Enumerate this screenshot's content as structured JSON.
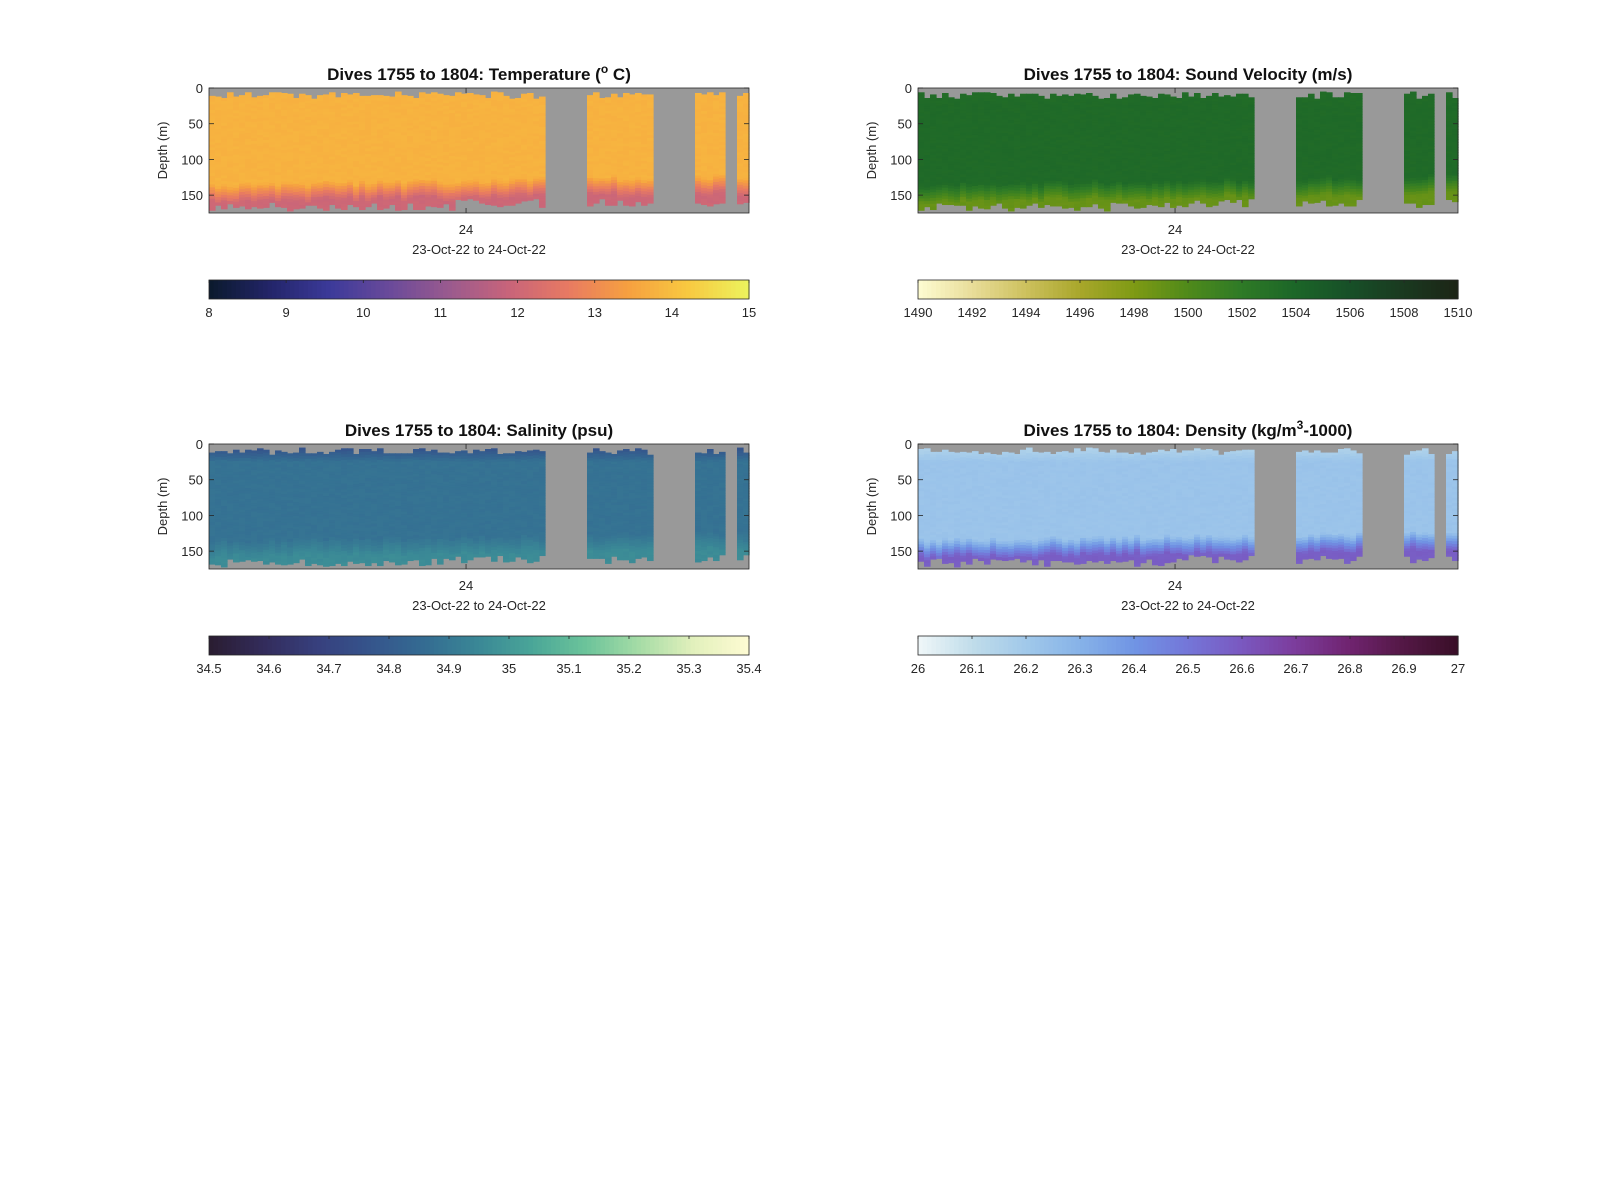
{
  "figure": {
    "background": "#ffffff",
    "missing_data_color": "#999999"
  },
  "chart_data": [
    {
      "type": "heatmap",
      "name": "temperature",
      "title": "Dives 1755 to 1804: Temperature (",
      "title_sup": "o",
      "title_suffix": " C)",
      "ylabel": "Depth (m)",
      "ylim": [
        0,
        175
      ],
      "y_reversed": true,
      "yticks": [
        "0",
        "50",
        "100",
        "150"
      ],
      "ytick_values": [
        0,
        50,
        100,
        150
      ],
      "xticks": [
        "24"
      ],
      "xlabel": "23-Oct-22 to 24-Oct-22",
      "colorbar": {
        "range": [
          8,
          15
        ],
        "ticks": [
          "8",
          "9",
          "10",
          "11",
          "12",
          "13",
          "14",
          "15"
        ],
        "tick_values": [
          8,
          9,
          10,
          11,
          12,
          13,
          14,
          15
        ],
        "colors": [
          "#0b1a2e",
          "#23256a",
          "#3c3a9a",
          "#6a4a9a",
          "#9a5a8e",
          "#c8647a",
          "#e87a62",
          "#f6a040",
          "#f8c840",
          "#ecf25c"
        ]
      },
      "profile": {
        "surface_value": 13.8,
        "mid_value": 13.8,
        "bottom_value": 12.0
      },
      "dive_gaps": [
        "gap-1",
        "gap-2",
        "gap-3"
      ]
    },
    {
      "type": "heatmap",
      "name": "sound-velocity",
      "title": "Dives 1755 to 1804: Sound Velocity (m/s)",
      "ylabel": "Depth (m)",
      "ylim": [
        0,
        175
      ],
      "y_reversed": true,
      "yticks": [
        "0",
        "50",
        "100",
        "150"
      ],
      "ytick_values": [
        0,
        50,
        100,
        150
      ],
      "xticks": [
        "24"
      ],
      "xlabel": "23-Oct-22 to 24-Oct-22",
      "colorbar": {
        "range": [
          1490,
          1510
        ],
        "ticks": [
          "1490",
          "1492",
          "1494",
          "1496",
          "1498",
          "1500",
          "1502",
          "1504",
          "1506",
          "1508",
          "1510"
        ],
        "tick_values": [
          1490,
          1492,
          1494,
          1496,
          1498,
          1500,
          1502,
          1504,
          1506,
          1508,
          1510
        ],
        "colors": [
          "#fdfbd0",
          "#e8dc98",
          "#ccc05c",
          "#a8a62a",
          "#7e9a14",
          "#4f8a1a",
          "#2e7a26",
          "#1c6628",
          "#175028",
          "#1a3a20",
          "#1c2516"
        ]
      },
      "profile": {
        "surface_value": 1503.3,
        "mid_value": 1503.6,
        "bottom_value": 1499.0
      },
      "dive_gaps": [
        "gap-1",
        "gap-2",
        "gap-3"
      ]
    },
    {
      "type": "heatmap",
      "name": "salinity",
      "title": "Dives 1755 to 1804: Salinity (psu)",
      "ylabel": "Depth (m)",
      "ylim": [
        0,
        175
      ],
      "y_reversed": true,
      "yticks": [
        "0",
        "50",
        "100",
        "150"
      ],
      "ytick_values": [
        0,
        50,
        100,
        150
      ],
      "xticks": [
        "24"
      ],
      "xlabel": "23-Oct-22 to 24-Oct-22",
      "colorbar": {
        "range": [
          34.5,
          35.4
        ],
        "ticks": [
          "34.5",
          "34.6",
          "34.7",
          "34.8",
          "34.9",
          "35",
          "35.1",
          "35.2",
          "35.3",
          "35.4"
        ],
        "tick_values": [
          34.5,
          34.6,
          34.7,
          34.8,
          34.9,
          35.0,
          35.1,
          35.2,
          35.3,
          35.4
        ],
        "colors": [
          "#2a1d32",
          "#332c5c",
          "#37407e",
          "#35558c",
          "#346c92",
          "#3a8896",
          "#4aa698",
          "#6cc49a",
          "#a6dca6",
          "#e2f0bc",
          "#fdfbd2"
        ]
      },
      "profile": {
        "surface_value": 34.72,
        "mid_value": 34.88,
        "bottom_value": 34.96
      },
      "dive_gaps": [
        "gap-1",
        "gap-2",
        "gap-3"
      ]
    },
    {
      "type": "heatmap",
      "name": "density",
      "title": "Dives 1755 to 1804: Density (kg/m",
      "title_sup": "3",
      "title_suffix": "-1000)",
      "ylabel": "Depth (m)",
      "ylim": [
        0,
        175
      ],
      "y_reversed": true,
      "yticks": [
        "0",
        "50",
        "100",
        "150"
      ],
      "ytick_values": [
        0,
        50,
        100,
        150
      ],
      "xticks": [
        "24"
      ],
      "xlabel": "23-Oct-22 to 24-Oct-22",
      "colorbar": {
        "range": [
          26,
          27
        ],
        "ticks": [
          "26",
          "26.1",
          "26.2",
          "26.3",
          "26.4",
          "26.5",
          "26.6",
          "26.7",
          "26.8",
          "26.9",
          "27"
        ],
        "tick_values": [
          26,
          26.1,
          26.2,
          26.3,
          26.4,
          26.5,
          26.6,
          26.7,
          26.8,
          26.9,
          27
        ],
        "colors": [
          "#eef6f8",
          "#bfdcea",
          "#a0c8ea",
          "#86b2e8",
          "#7094e4",
          "#7476d8",
          "#7a58c0",
          "#7c3c9c",
          "#702470",
          "#541846",
          "#3a0e28"
        ]
      },
      "profile": {
        "surface_value": 26.12,
        "mid_value": 26.22,
        "bottom_value": 26.58
      },
      "dive_gaps": [
        "gap-1",
        "gap-2",
        "gap-3"
      ]
    }
  ]
}
